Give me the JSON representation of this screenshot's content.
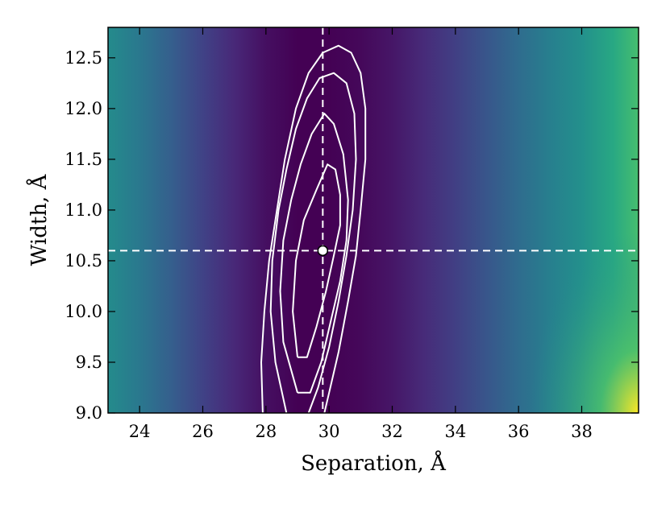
{
  "chart_data": {
    "type": "heatmap",
    "title": "",
    "xlabel": "Separation, Å",
    "ylabel": "Width, Å",
    "xlim": [
      23.0,
      39.8
    ],
    "ylim": [
      9.0,
      12.8
    ],
    "xticks": [
      "24",
      "26",
      "28",
      "30",
      "32",
      "34",
      "36",
      "38"
    ],
    "xtick_values": [
      24,
      26,
      28,
      30,
      32,
      34,
      36,
      38
    ],
    "yticks": [
      "9.0",
      "9.5",
      "10.0",
      "10.5",
      "11.0",
      "11.5",
      "12.0",
      "12.5"
    ],
    "ytick_values": [
      9.0,
      9.5,
      10.0,
      10.5,
      11.0,
      11.5,
      12.0,
      12.5
    ],
    "grid": false,
    "colormap": "viridis",
    "colormap_stops": [
      "#440154",
      "#482878",
      "#3e4989",
      "#31688e",
      "#26828e",
      "#1f9e89",
      "#35b779",
      "#6ece58",
      "#b5de2b",
      "#fde725"
    ],
    "background_gradient": {
      "x": [
        23.0,
        24.0,
        25.0,
        26.0,
        27.0,
        28.0,
        29.0,
        30.0,
        31.0,
        32.0,
        33.0,
        34.0,
        35.0,
        36.0,
        37.0,
        38.0,
        39.0,
        39.8
      ],
      "level": [
        0.48,
        0.4,
        0.3,
        0.2,
        0.11,
        0.04,
        0.0,
        0.0,
        0.02,
        0.06,
        0.12,
        0.19,
        0.27,
        0.35,
        0.43,
        0.5,
        0.6,
        0.7
      ],
      "corner_highlight": {
        "x": 39.8,
        "y": 9.0,
        "level": 1.0
      }
    },
    "best_fit": {
      "x": 29.8,
      "y": 10.6
    },
    "reference_lines": {
      "vertical_x": 29.8,
      "horizontal_y": 10.6,
      "style": "dashed",
      "color": "#ffffff"
    },
    "contour_color": "#ffffff",
    "contours": [
      {
        "name": "",
        "points": [
          [
            29.0,
            9.55
          ],
          [
            28.85,
            10.0
          ],
          [
            28.95,
            10.5
          ],
          [
            29.2,
            10.9
          ],
          [
            29.6,
            11.2
          ],
          [
            29.95,
            11.45
          ],
          [
            30.2,
            11.4
          ],
          [
            30.35,
            11.15
          ],
          [
            30.35,
            10.85
          ],
          [
            30.15,
            10.55
          ],
          [
            29.9,
            10.2
          ],
          [
            29.6,
            9.85
          ],
          [
            29.3,
            9.55
          ],
          [
            29.0,
            9.55
          ]
        ]
      },
      {
        "name": "",
        "points": [
          [
            29.0,
            9.2
          ],
          [
            28.55,
            9.7
          ],
          [
            28.45,
            10.2
          ],
          [
            28.55,
            10.7
          ],
          [
            28.8,
            11.1
          ],
          [
            29.1,
            11.45
          ],
          [
            29.45,
            11.75
          ],
          [
            29.85,
            11.95
          ],
          [
            30.15,
            11.85
          ],
          [
            30.45,
            11.55
          ],
          [
            30.6,
            11.1
          ],
          [
            30.55,
            10.7
          ],
          [
            30.35,
            10.3
          ],
          [
            30.05,
            9.9
          ],
          [
            29.75,
            9.5
          ],
          [
            29.4,
            9.2
          ],
          [
            29.0,
            9.2
          ]
        ]
      },
      {
        "name": "",
        "points": [
          [
            28.65,
            9.0
          ],
          [
            28.3,
            9.5
          ],
          [
            28.15,
            10.0
          ],
          [
            28.2,
            10.5
          ],
          [
            28.4,
            11.0
          ],
          [
            28.65,
            11.4
          ],
          [
            28.95,
            11.8
          ],
          [
            29.3,
            12.1
          ],
          [
            29.7,
            12.3
          ],
          [
            30.15,
            12.35
          ],
          [
            30.55,
            12.25
          ],
          [
            30.8,
            11.95
          ],
          [
            30.85,
            11.5
          ],
          [
            30.75,
            11.0
          ],
          [
            30.55,
            10.55
          ],
          [
            30.3,
            10.1
          ],
          [
            30.0,
            9.65
          ],
          [
            29.65,
            9.25
          ],
          [
            29.35,
            9.0
          ]
        ]
      },
      {
        "name": "",
        "points": [
          [
            27.9,
            9.0
          ],
          [
            27.85,
            9.5
          ],
          [
            27.95,
            10.0
          ],
          [
            28.1,
            10.5
          ],
          [
            28.35,
            11.0
          ],
          [
            28.6,
            11.5
          ],
          [
            28.95,
            12.0
          ],
          [
            29.35,
            12.35
          ],
          [
            29.8,
            12.55
          ],
          [
            30.3,
            12.62
          ],
          [
            30.7,
            12.55
          ],
          [
            31.0,
            12.35
          ],
          [
            31.15,
            12.0
          ],
          [
            31.15,
            11.5
          ],
          [
            31.0,
            11.0
          ],
          [
            30.85,
            10.55
          ],
          [
            30.6,
            10.1
          ],
          [
            30.3,
            9.6
          ],
          [
            30.0,
            9.2
          ],
          [
            29.85,
            9.0
          ]
        ]
      }
    ]
  }
}
